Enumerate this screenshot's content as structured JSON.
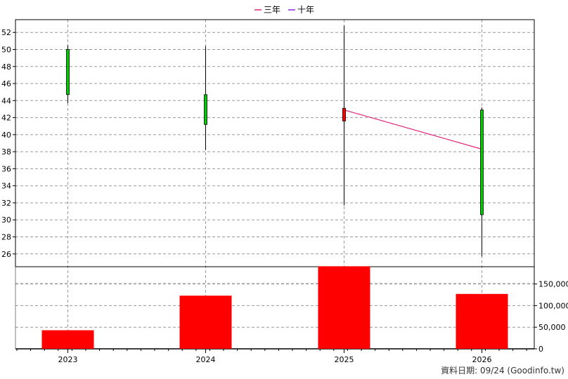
{
  "chart_data": {
    "type": "candlestick",
    "legend": [
      {
        "name": "三年",
        "color": "#e0287d"
      },
      {
        "name": "十年",
        "color": "#8a2be2"
      }
    ],
    "categories": [
      "2023",
      "2024",
      "2025",
      "2026"
    ],
    "price_axis": {
      "ylim": [
        24.5,
        53.5
      ],
      "ticks": [
        26,
        28,
        30,
        32,
        34,
        36,
        38,
        40,
        42,
        44,
        46,
        48,
        50,
        52
      ]
    },
    "candles": [
      {
        "x": "2023",
        "open": 44.7,
        "close": 50.0,
        "high": 50.5,
        "low": 43.7,
        "color": "#00cc00"
      },
      {
        "x": "2024",
        "open": 41.2,
        "close": 44.7,
        "high": 50.4,
        "low": 38.2,
        "color": "#00cc00"
      },
      {
        "x": "2025",
        "open": 43.1,
        "close": 41.6,
        "high": 52.8,
        "low": 31.7,
        "color": "#ff0000"
      },
      {
        "x": "2026",
        "open": 30.6,
        "close": 42.9,
        "high": 43.2,
        "low": 25.7,
        "color": "#00cc00"
      }
    ],
    "ma_lines": [
      {
        "name": "三年",
        "color": "#e0287d",
        "points": [
          {
            "x": "2025",
            "y": 42.9
          },
          {
            "x": "2026",
            "y": 38.3
          }
        ]
      }
    ],
    "volume_axis": {
      "ylim": [
        0,
        190000
      ],
      "ticks": [
        "0",
        "50,000",
        "100,000",
        "150,000"
      ],
      "tick_values": [
        0,
        50000,
        100000,
        150000
      ]
    },
    "volume": [
      {
        "x": "2023",
        "value": 43000
      },
      {
        "x": "2024",
        "value": 123000
      },
      {
        "x": "2025",
        "value": 191000
      },
      {
        "x": "2026",
        "value": 127000
      }
    ],
    "volume_color": "#ff0000",
    "grid": true
  },
  "footer": {
    "date_text": "資料日期: 09/24  (Goodinfo.tw)"
  }
}
